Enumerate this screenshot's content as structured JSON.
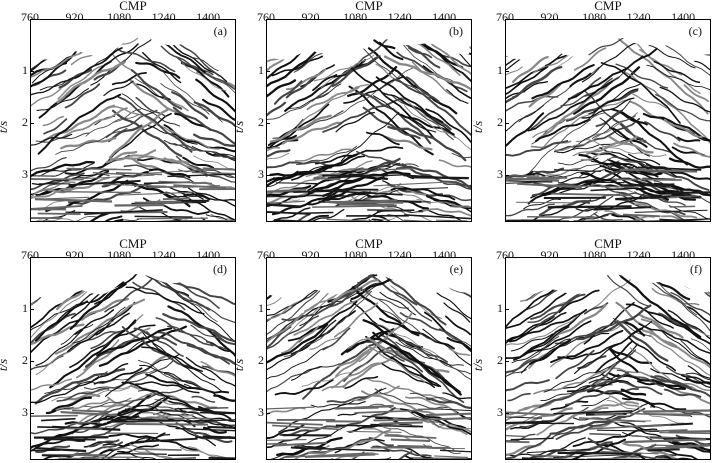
{
  "figure": {
    "x_axis_title": "CMP",
    "y_axis_title": "t/s",
    "x_ticks": [
      "760",
      "920",
      "1080",
      "1240",
      "1400"
    ],
    "y_ticks": [
      "1",
      "2",
      "3"
    ],
    "panels": [
      {
        "tag": "(a)"
      },
      {
        "tag": "(b)"
      },
      {
        "tag": "(c)"
      },
      {
        "tag": "(d)"
      },
      {
        "tag": "(e)"
      },
      {
        "tag": "(f)"
      }
    ]
  },
  "chart_data": [
    {
      "type": "heatmap",
      "xlabel": "CMP",
      "ylabel": "t/s",
      "xlim": [
        760,
        1500
      ],
      "ylim": [
        3.9,
        0
      ],
      "label": "(a)"
    },
    {
      "type": "heatmap",
      "xlabel": "CMP",
      "ylabel": "t/s",
      "xlim": [
        760,
        1500
      ],
      "ylim": [
        3.9,
        0
      ],
      "label": "(b)"
    },
    {
      "type": "heatmap",
      "xlabel": "CMP",
      "ylabel": "t/s",
      "xlim": [
        760,
        1500
      ],
      "ylim": [
        3.9,
        0
      ],
      "label": "(c)"
    },
    {
      "type": "heatmap",
      "xlabel": "CMP",
      "ylabel": "t/s",
      "xlim": [
        760,
        1500
      ],
      "ylim": [
        3.9,
        0
      ],
      "label": "(d)"
    },
    {
      "type": "heatmap",
      "xlabel": "CMP",
      "ylabel": "t/s",
      "xlim": [
        760,
        1500
      ],
      "ylim": [
        3.9,
        0
      ],
      "label": "(e)"
    },
    {
      "type": "heatmap",
      "xlabel": "CMP",
      "ylabel": "t/s",
      "xlim": [
        760,
        1500
      ],
      "ylim": [
        3.9,
        0
      ],
      "label": "(f)"
    }
  ]
}
